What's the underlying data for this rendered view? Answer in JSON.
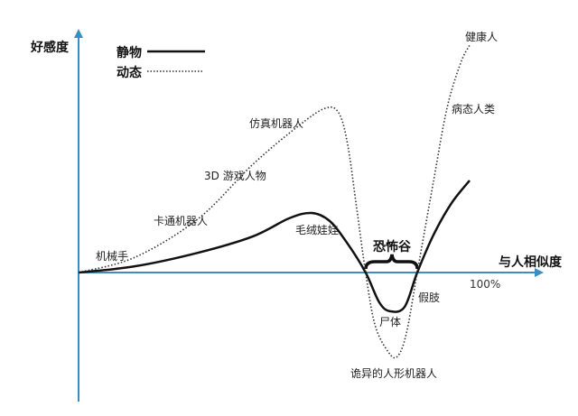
{
  "chart_data": {
    "type": "line",
    "ylabel": "好感度",
    "xlabel": "与人相似度",
    "x_tick_label": "100%",
    "xlim": [
      0,
      100
    ],
    "ylim": [
      -60,
      112
    ],
    "grid": false,
    "legend_placement": "top-left",
    "axis_color": "#3a8fc0",
    "series": [
      {
        "name": "静物",
        "style": "solid",
        "color": "#111111",
        "x": [
          0,
          14.5,
          30.7,
          44.6,
          53.8,
          59.6,
          64.2,
          68.8,
          73.4,
          76.9,
          79.7,
          83.4,
          86.6,
          90.8,
          95.4,
          100
        ],
        "y": [
          0,
          2.9,
          9.2,
          16.7,
          25,
          27.5,
          23.8,
          13.3,
          0,
          -13.8,
          -17.9,
          -15.8,
          0,
          17.5,
          32.1,
          42.5
        ]
      },
      {
        "name": "动态",
        "style": "dotted",
        "color": "#333333",
        "x": [
          0,
          14.5,
          30.7,
          44.6,
          56.1,
          63,
          66.5,
          68.8,
          71.1,
          73.4,
          75.8,
          79.2,
          81.5,
          83.8,
          86.6,
          90.8,
          94.2,
          97.7,
          100
        ],
        "y": [
          0,
          7.1,
          25,
          50,
          67.5,
          75.8,
          73.8,
          59.2,
          30,
          0,
          -24.2,
          -36.7,
          -38.8,
          -28.3,
          0,
          42.5,
          75.8,
          96.7,
          105
        ]
      }
    ],
    "annotations": {
      "industrial_robot": "机械手",
      "cartoon_robot": "卡通机器人",
      "game_character": "3D 游戏人物",
      "humanoid_robot": "仿真机器人",
      "stuffed_toy": "毛绒娃娃",
      "uncanny_valley": "恐怖谷",
      "corpse": "尸体",
      "prosthetic": "假肢",
      "zombie": "诡异的人形机器人",
      "sick_person": "病态人类",
      "healthy_person": "健康人"
    }
  }
}
